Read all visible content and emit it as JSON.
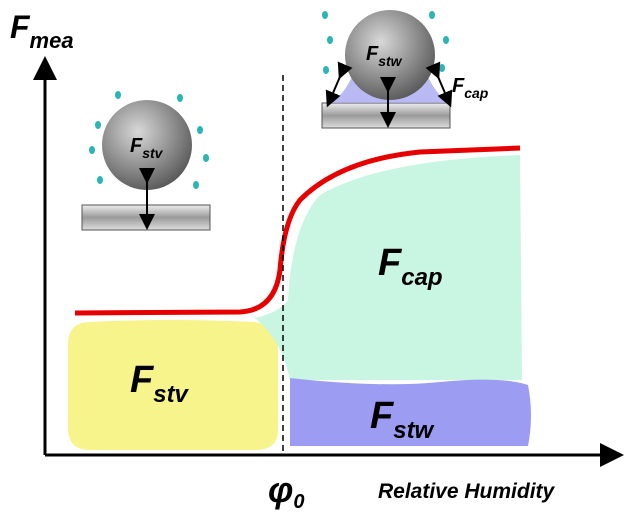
{
  "axes": {
    "y_label": {
      "symbol": "F",
      "subscript": "mea"
    },
    "x_label": "Relative Humidity",
    "x_marker": {
      "symbol": "φ",
      "subscript": "0"
    }
  },
  "regions": [
    {
      "symbol": "F",
      "subscript": "stv"
    },
    {
      "symbol": "F",
      "subscript": "cap"
    },
    {
      "symbol": "F",
      "subscript": "stw"
    }
  ],
  "icons": [
    {
      "forces": [
        {
          "symbol": "F",
          "subscript": "stv"
        }
      ]
    },
    {
      "forces": [
        {
          "symbol": "F",
          "subscript": "stw"
        },
        {
          "symbol": "F",
          "subscript": "cap"
        }
      ]
    }
  ]
}
